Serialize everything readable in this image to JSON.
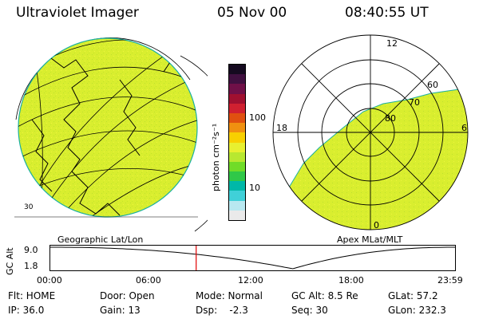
{
  "header": {
    "instrument": "Ultraviolet Imager",
    "date": "05 Nov 00",
    "time": "08:40:55 UT"
  },
  "geo_panel": {
    "label": "Geographic Lat/Lon",
    "lon_label": "30",
    "fill_color": "#d9ee2f"
  },
  "colorbar": {
    "unit": "photon cm⁻²s⁻¹",
    "tick_high": "100",
    "tick_low": "10",
    "colors": [
      "#eaeaea",
      "#b8e8f0",
      "#40d0d8",
      "#00b8a8",
      "#30c848",
      "#70dc28",
      "#b8e830",
      "#e8f030",
      "#f8d000",
      "#f09010",
      "#e05010",
      "#d02030",
      "#a01030",
      "#701048",
      "#401040",
      "#150a20"
    ]
  },
  "mlt_panel": {
    "label": "Apex MLat/MLT",
    "mlt_labels": {
      "top": "12",
      "left": "18",
      "right": "6",
      "bottom": "0"
    },
    "lat_labels": [
      "80",
      "70",
      "60"
    ],
    "fill_color": "#d9ee2f"
  },
  "altitude_plot": {
    "ylabel": "GC Alt",
    "y_ticks": [
      "9.0",
      "1.8"
    ],
    "x_ticks": [
      "00:00",
      "06:00",
      "12:00",
      "18:00",
      "23:59"
    ],
    "current_time_hours": 8.68,
    "marker_color": "#e00000"
  },
  "status": {
    "flt": "Flt: HOME",
    "door": "Door: Open",
    "mode": "Mode: Normal",
    "gc_alt": "GC Alt: 8.5 Re",
    "glat": "GLat:  57.2",
    "ip": "IP: 36.0",
    "gain": "Gain: 13",
    "dsp": "Dsp:    -2.3",
    "seq": "Seq: 30",
    "glon": "GLon: 232.3"
  }
}
